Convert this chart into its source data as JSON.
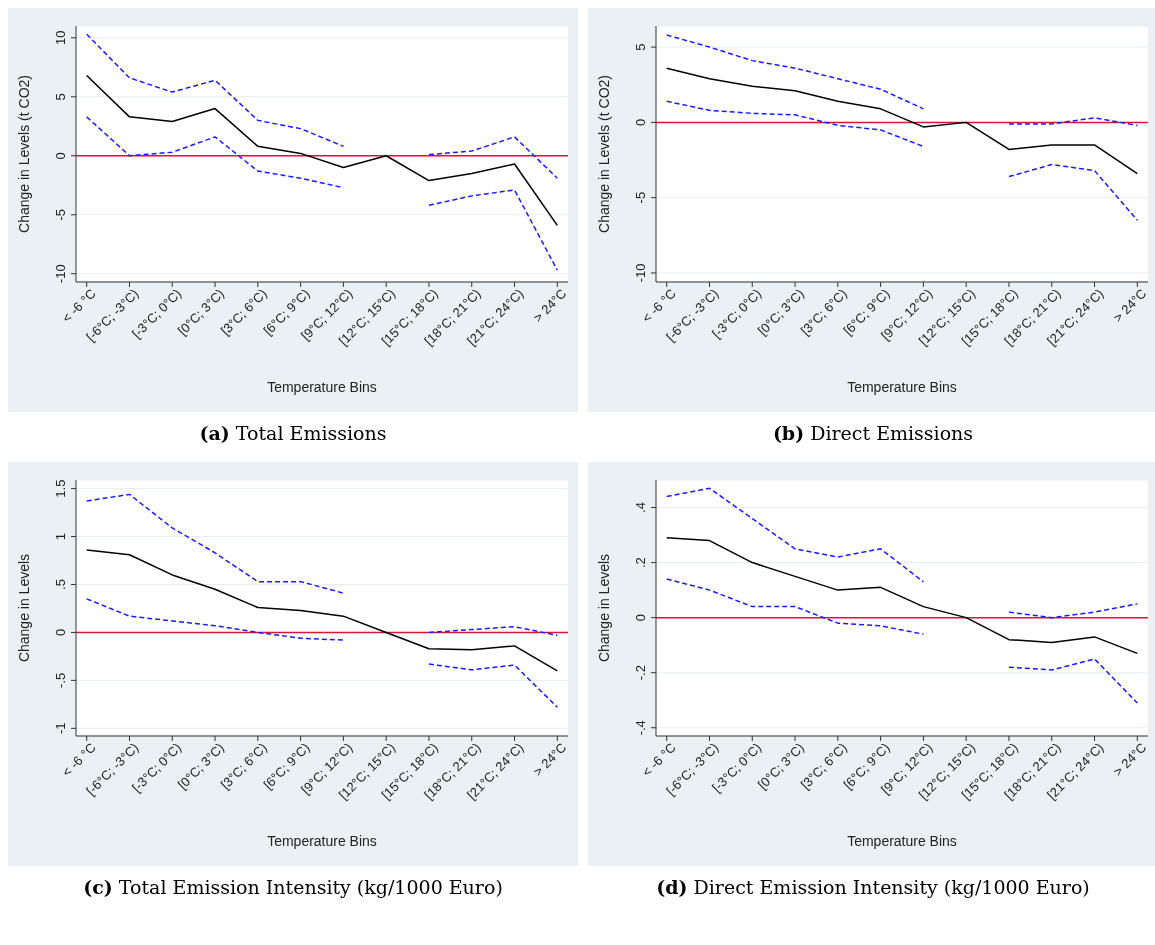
{
  "chart_data": [
    {
      "type": "line",
      "title": "(a) Total Emissions",
      "xlabel": "Temperature Bins",
      "ylabel": "Change in Levels (t CO2)",
      "categories": [
        "< -6 °C",
        "[-6°C; -3°C)",
        "[-3°C; 0°C)",
        "[0°C; 3°C)",
        "[3°C; 6°C)",
        "[6°C; 9°C)",
        "[9°C; 12°C)",
        "[12°C; 15°C)",
        "[15°C; 18°C)",
        "[18°C; 21°C)",
        "[21°C; 24°C)",
        "> 24°C"
      ],
      "series": [
        {
          "color": "#000000",
          "line_style": "solid",
          "values": [
            6.8,
            3.3,
            2.9,
            4.0,
            0.8,
            0.2,
            -1.0,
            0,
            -2.1,
            -1.5,
            -0.7,
            -5.9
          ]
        },
        {
          "color": "#1a1aff",
          "line_style": "dashed",
          "values": [
            10.3,
            6.6,
            5.4,
            6.4,
            3.0,
            2.3,
            0.8,
            null,
            0.1,
            0.4,
            1.6,
            -1.9
          ]
        },
        {
          "color": "#1a1aff",
          "line_style": "dashed",
          "values": [
            3.3,
            0,
            0.3,
            1.6,
            -1.3,
            -1.9,
            -2.7,
            null,
            -4.2,
            -3.4,
            -2.9,
            -9.7
          ]
        }
      ],
      "ylim": [
        -10.7,
        11
      ],
      "yticks": [
        -10,
        -5,
        0,
        5,
        10
      ],
      "grid": "y",
      "marker": "none",
      "ref_lines": [
        {
          "axis": "y",
          "value": 0,
          "color": "#d8163c"
        }
      ]
    },
    {
      "type": "line",
      "title": "(b) Direct Emissions",
      "xlabel": "Temperature Bins",
      "ylabel": "Change in Levels (t CO2)",
      "categories": [
        "< -6 °C",
        "[-6°C; -3°C)",
        "[-3°C; 0°C)",
        "[0°C; 3°C)",
        "[3°C; 6°C)",
        "[6°C; 9°C)",
        "[9°C; 12°C)",
        "[12°C; 15°C)",
        "[15°C; 18°C)",
        "[18°C; 21°C)",
        "[21°C; 24°C)",
        "> 24°C"
      ],
      "series": [
        {
          "color": "#000000",
          "line_style": "solid",
          "values": [
            3.6,
            2.9,
            2.4,
            2.1,
            1.4,
            0.9,
            -0.3,
            0,
            -1.8,
            -1.5,
            -1.5,
            -3.4
          ]
        },
        {
          "color": "#1a1aff",
          "line_style": "dashed",
          "values": [
            5.8,
            5.0,
            4.1,
            3.6,
            2.9,
            2.2,
            0.9,
            null,
            -0.1,
            -0.1,
            0.3,
            -0.2
          ]
        },
        {
          "color": "#1a1aff",
          "line_style": "dashed",
          "values": [
            1.4,
            0.8,
            0.6,
            0.5,
            -0.2,
            -0.5,
            -1.6,
            null,
            -3.6,
            -2.8,
            -3.2,
            -6.5
          ]
        }
      ],
      "ylim": [
        -10.6,
        6.4
      ],
      "yticks": [
        -10,
        -5,
        0,
        5
      ],
      "grid": "y",
      "marker": "none",
      "ref_lines": [
        {
          "axis": "y",
          "value": 0,
          "color": "#d8163c"
        }
      ]
    },
    {
      "type": "line",
      "title": "(c) Total Emission Intensity (kg/1000 Euro)",
      "xlabel": "Temperature Bins",
      "ylabel": "Change in Levels",
      "categories": [
        "< -6 °C",
        "[-6°C; -3°C)",
        "[-3°C; 0°C)",
        "[0°C; 3°C)",
        "[3°C; 6°C)",
        "[6°C; 9°C)",
        "[9°C; 12°C)",
        "[12°C; 15°C)",
        "[15°C; 18°C)",
        "[18°C; 21°C)",
        "[21°C; 24°C)",
        "> 24°C"
      ],
      "series": [
        {
          "color": "#000000",
          "line_style": "solid",
          "values": [
            0.86,
            0.81,
            0.6,
            0.45,
            0.26,
            0.23,
            0.17,
            0,
            -0.17,
            -0.18,
            -0.14,
            -0.4
          ]
        },
        {
          "color": "#1a1aff",
          "line_style": "dashed",
          "values": [
            1.37,
            1.44,
            1.09,
            0.83,
            0.53,
            0.53,
            0.41,
            null,
            0.0,
            0.03,
            0.06,
            -0.03
          ]
        },
        {
          "color": "#1a1aff",
          "line_style": "dashed",
          "values": [
            0.35,
            0.17,
            0.12,
            0.07,
            0.0,
            -0.06,
            -0.08,
            null,
            -0.33,
            -0.39,
            -0.34,
            -0.78
          ]
        }
      ],
      "ylim": [
        -1.08,
        1.59
      ],
      "yticks": [
        {
          "value": -1,
          "label": "-1"
        },
        {
          "value": -0.5,
          "label": "-.5"
        },
        0,
        {
          "value": 0.5,
          "label": ".5"
        },
        1,
        1.5
      ],
      "grid": "y",
      "marker": "none",
      "ref_lines": [
        {
          "axis": "y",
          "value": 0,
          "color": "#d8163c"
        }
      ]
    },
    {
      "type": "line",
      "title": "(d) Direct Emission Intensity (kg/1000 Euro)",
      "xlabel": "Temperature Bins",
      "ylabel": "Change in Levels",
      "categories": [
        "< -6 °C",
        "[-6°C; -3°C)",
        "[-3°C; 0°C)",
        "[0°C; 3°C)",
        "[3°C; 6°C)",
        "[6°C; 9°C)",
        "[9°C; 12°C)",
        "[12°C; 15°C)",
        "[15°C; 18°C)",
        "[18°C; 21°C)",
        "[21°C; 24°C)",
        "> 24°C"
      ],
      "series": [
        {
          "color": "#000000",
          "line_style": "solid",
          "values": [
            0.29,
            0.28,
            0.2,
            0.15,
            0.1,
            0.11,
            0.04,
            0,
            -0.08,
            -0.09,
            -0.07,
            -0.13
          ]
        },
        {
          "color": "#1a1aff",
          "line_style": "dashed",
          "values": [
            0.44,
            0.47,
            0.36,
            0.25,
            0.22,
            0.25,
            0.13,
            null,
            0.02,
            0.0,
            0.02,
            0.05
          ]
        },
        {
          "color": "#1a1aff",
          "line_style": "dashed",
          "values": [
            0.14,
            0.1,
            0.04,
            0.04,
            -0.02,
            -0.03,
            -0.06,
            null,
            -0.18,
            -0.19,
            -0.15,
            -0.31
          ]
        }
      ],
      "ylim": [
        -0.43,
        0.5
      ],
      "yticks": [
        {
          "value": -0.4,
          "label": "-.4"
        },
        {
          "value": -0.2,
          "label": "-.2"
        },
        0,
        {
          "value": 0.2,
          "label": ".2"
        },
        {
          "value": 0.4,
          "label": ".4"
        }
      ],
      "grid": "y",
      "marker": "none",
      "ref_lines": [
        {
          "axis": "y",
          "value": 0,
          "color": "#d8163c"
        }
      ]
    }
  ]
}
